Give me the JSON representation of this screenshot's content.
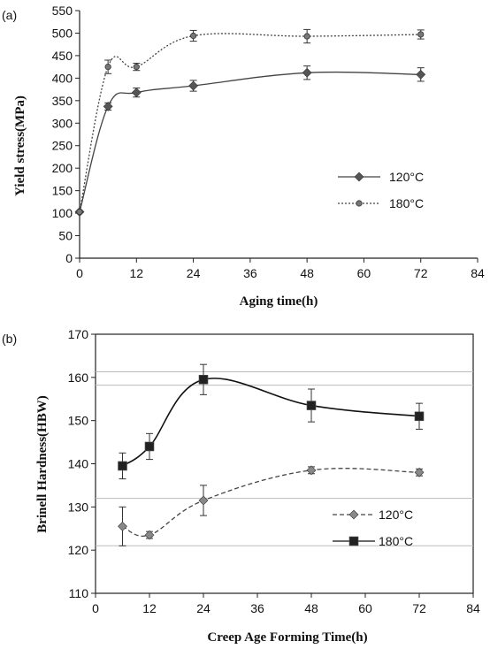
{
  "chart_data": [
    {
      "type": "line",
      "panel_label": "(a)",
      "xlabel": "Aging time(h)",
      "ylabel": "Yield stress(MPa)",
      "xlim": [
        0,
        84
      ],
      "ylim": [
        0,
        550
      ],
      "xticks": [
        0,
        12,
        24,
        36,
        48,
        60,
        72,
        84
      ],
      "yticks": [
        0,
        50,
        100,
        150,
        200,
        250,
        300,
        350,
        400,
        450,
        500,
        550
      ],
      "legend_position": "center-right",
      "colors": {
        "s120": "#555555",
        "s180": "#666666"
      },
      "series": [
        {
          "name": "120°C",
          "x": [
            0,
            6,
            12,
            24,
            48,
            72
          ],
          "y": [
            103,
            337,
            368,
            383,
            412,
            408
          ],
          "err": [
            0,
            8,
            10,
            12,
            15,
            15
          ],
          "marker": "diamond",
          "line": "solid"
        },
        {
          "name": "180°C",
          "x": [
            0,
            6,
            12,
            24,
            48,
            72
          ],
          "y": [
            103,
            425,
            425,
            494,
            493,
            497
          ],
          "err": [
            0,
            15,
            8,
            12,
            15,
            10
          ],
          "marker": "circle",
          "line": "dotted"
        }
      ]
    },
    {
      "type": "line",
      "panel_label": "(b)",
      "xlabel": "Creep Age Forming Time(h)",
      "ylabel": "Brinell Hardness(HBW)",
      "xlim": [
        0,
        84
      ],
      "ylim": [
        110,
        170
      ],
      "xticks": [
        0,
        12,
        24,
        36,
        48,
        60,
        72,
        84
      ],
      "yticks": [
        110,
        120,
        130,
        140,
        150,
        160,
        170
      ],
      "legend_position": "bottom-right",
      "colors": {
        "s120": "#888888",
        "s180": "#222222"
      },
      "series": [
        {
          "name": "120°C",
          "x": [
            6,
            12,
            24,
            48,
            72
          ],
          "y": [
            125.5,
            123.5,
            131.5,
            138.5,
            138
          ],
          "err": [
            4.5,
            0.8,
            3.5,
            0.8,
            0.8
          ],
          "marker": "diamond",
          "line": "dashed"
        },
        {
          "name": "180°C",
          "x": [
            6,
            12,
            24,
            48,
            72
          ],
          "y": [
            139.5,
            144,
            159.5,
            153.5,
            151
          ],
          "err": [
            3,
            3,
            3.5,
            3.8,
            3
          ],
          "marker": "square",
          "line": "solid"
        }
      ]
    }
  ]
}
